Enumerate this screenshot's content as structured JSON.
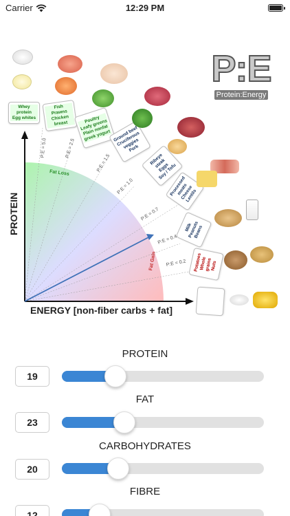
{
  "status_bar": {
    "carrier": "Carrier",
    "time": "12:29 PM"
  },
  "logo": {
    "title": "P:E",
    "subtitle": "Protein:Energy"
  },
  "infographic": {
    "y_axis_label": "PROTEIN",
    "x_axis_label": "ENERGY [non-fiber carbs + fat]",
    "zone_fat_loss": "Fat Loss",
    "zone_fat_gain": "Fat Gain",
    "ratio_labels": [
      "P:E = 5.0",
      "P:E = 2.5",
      "P:E = 1.5",
      "P:E = 1.0",
      "P:E = 0.7",
      "P:E = 0.4",
      "P:E = 0.2"
    ],
    "cards": [
      {
        "lines": [
          "Whey protein",
          "Egg whites"
        ]
      },
      {
        "lines": [
          "Fish",
          "Prawns",
          "Chicken breast"
        ]
      },
      {
        "lines": [
          "Poultry",
          "Leafy greens",
          "Plain nonfat greek yogurt"
        ]
      },
      {
        "lines": [
          "Ground beef",
          "Cruciferous veggies",
          "Pork"
        ]
      },
      {
        "lines": [
          "Ribeye steak",
          "Eggs",
          "Soy / Tofu"
        ]
      },
      {
        "lines": [
          "Processed meats",
          "Cheese",
          "Lentils"
        ]
      },
      {
        "lines": [
          "Milk",
          "Peanuts",
          "Beans"
        ]
      },
      {
        "lines": [
          "Potatoes",
          "Whole grains",
          "Nuts"
        ]
      },
      {
        "lines": [
          "",
          "",
          ""
        ]
      }
    ]
  },
  "sliders": [
    {
      "label": "PROTEIN",
      "value": "19",
      "fraction": 0.19
    },
    {
      "label": "FAT",
      "value": "23",
      "fraction": 0.23
    },
    {
      "label": "CARBOHYDRATES",
      "value": "20",
      "fraction": 0.2
    },
    {
      "label": "FIBRE",
      "value": "12",
      "fraction": 0.12
    }
  ]
}
